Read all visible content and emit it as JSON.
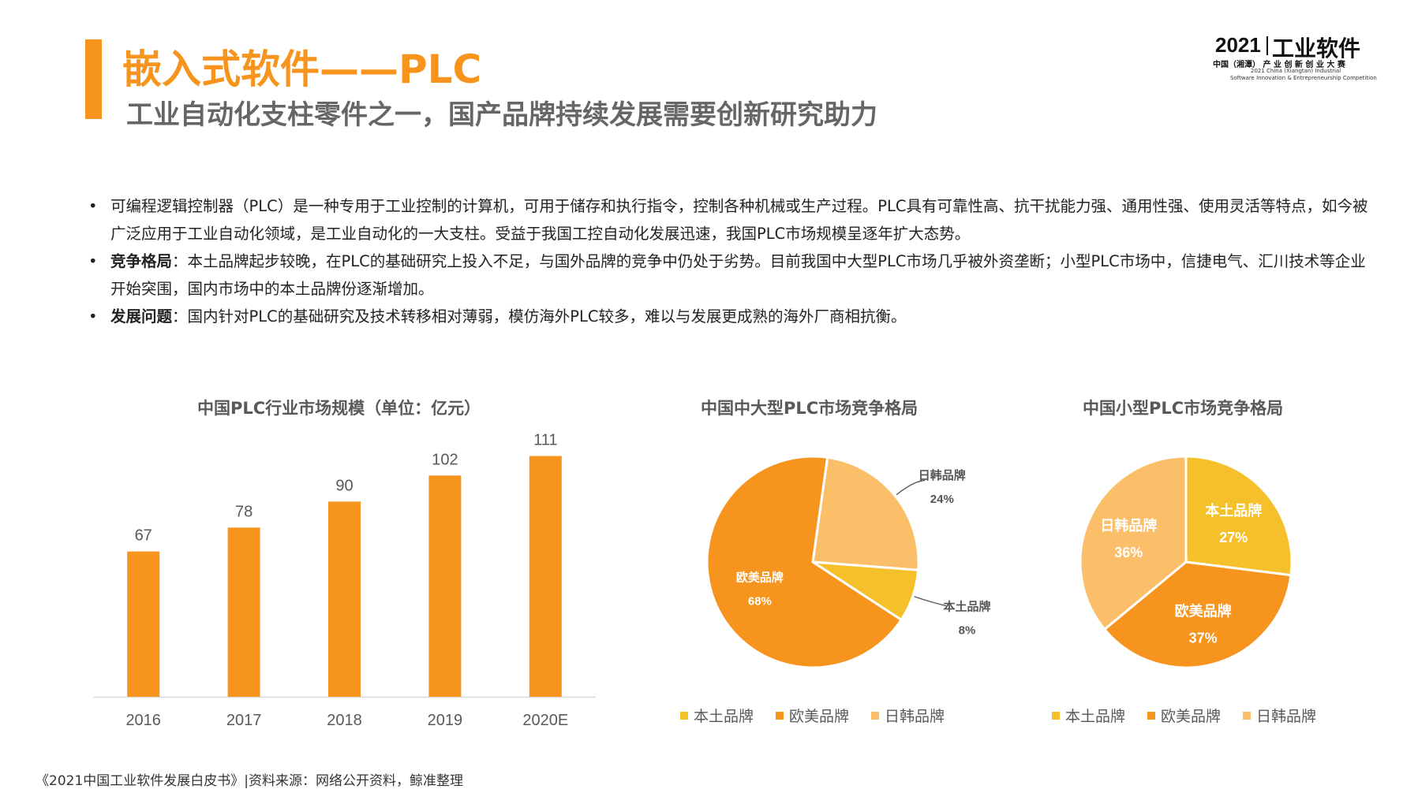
{
  "header": {
    "title": "嵌入式软件——PLC",
    "subtitle": "工业自动化支柱零件之一，国产品牌持续发展需要创新研究助力"
  },
  "logo": {
    "year": "2021",
    "main": "工业软件",
    "sub": "中国（湘潭） 产 业 创 新 创 业 大 赛",
    "en_line1": "2021 China (Xiangtan) Industrial",
    "en_line2": "Software Innovation & Entrepreneurship Competition"
  },
  "bullets": [
    {
      "bold": "",
      "text": "可编程逻辑控制器（PLC）是一种专用于工业控制的计算机，可用于储存和执行指令，控制各种机械或生产过程。PLC具有可靠性高、抗干扰能力强、通用性强、使用灵活等特点，如今被广泛应用于工业自动化领域，是工业自动化的一大支柱。受益于我国工控自动化发展迅速，我国PLC市场规模呈逐年扩大态势。"
    },
    {
      "bold": "竞争格局",
      "text": "：本土品牌起步较晚，在PLC的基础研究上投入不足，与国外品牌的竞争中仍处于劣势。目前我国中大型PLC市场几乎被外资垄断；小型PLC市场中，信捷电气、汇川技术等企业开始突围，国内市场中的本土品牌份逐渐增加。"
    },
    {
      "bold": "发展问题",
      "text": "：国内针对PLC的基础研究及技术转移相对薄弱，模仿海外PLC较多，难以与发展更成熟的海外厂商相抗衡。"
    }
  ],
  "bullet_symbol": "•",
  "colors": {
    "accent": "#f7941d",
    "bar": "#f7941d",
    "local": "#f5c02a",
    "western": "#f7941d",
    "jpkr": "#fbbf6a"
  },
  "chart_data": [
    {
      "type": "bar",
      "title": "中国PLC行业市场规模（单位：亿元）",
      "categories": [
        "2016",
        "2017",
        "2018",
        "2019",
        "2020E"
      ],
      "values": [
        67,
        78,
        90,
        102,
        111
      ],
      "ylim": [
        0,
        125
      ],
      "grid": false
    },
    {
      "type": "pie",
      "title": "中国中大型PLC市场竞争格局",
      "slices": [
        {
          "label": "日韩品牌",
          "value": 24,
          "value_label": "24%",
          "color": "#fbbf6a"
        },
        {
          "label": "本土品牌",
          "value": 8,
          "value_label": "8%",
          "color": "#f5c02a"
        },
        {
          "label": "欧美品牌",
          "value": 68,
          "value_label": "68%",
          "color": "#f7941d"
        }
      ],
      "legend": [
        {
          "label": "本土品牌",
          "color": "#f5c02a"
        },
        {
          "label": "欧美品牌",
          "color": "#f7941d"
        },
        {
          "label": "日韩品牌",
          "color": "#fbbf6a"
        }
      ],
      "legend_position": "bottom"
    },
    {
      "type": "pie",
      "title": "中国小型PLC市场竞争格局",
      "slices": [
        {
          "label": "本土品牌",
          "value": 27,
          "value_label": "27%",
          "color": "#f5c02a"
        },
        {
          "label": "欧美品牌",
          "value": 37,
          "value_label": "37%",
          "color": "#f7941d"
        },
        {
          "label": "日韩品牌",
          "value": 36,
          "value_label": "36%",
          "color": "#fbbf6a"
        }
      ],
      "legend": [
        {
          "label": "本土品牌",
          "color": "#f5c02a"
        },
        {
          "label": "欧美品牌",
          "color": "#f7941d"
        },
        {
          "label": "日韩品牌",
          "color": "#fbbf6a"
        }
      ],
      "legend_position": "bottom"
    }
  ],
  "footer": {
    "source": "《2021中国工业软件发展白皮书》|资料来源：网络公开资料，鲸准整理"
  }
}
